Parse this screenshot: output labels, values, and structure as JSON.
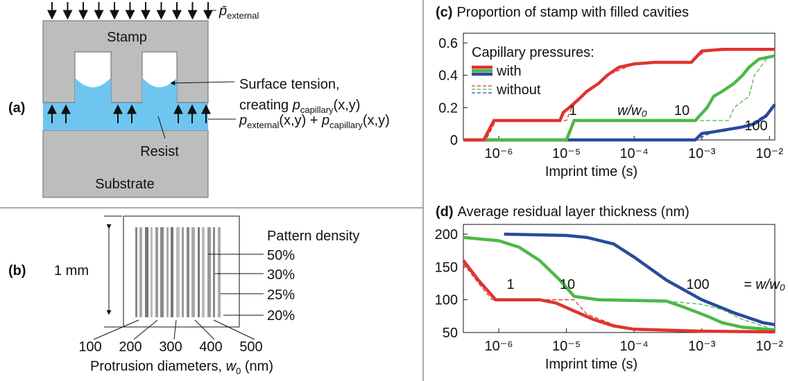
{
  "panel_a": {
    "label": "(a)",
    "stamp": "Stamp",
    "resist": "Resist",
    "substrate": "Substrate",
    "applied": {
      "symbol": "p̄",
      "sub": "external"
    },
    "tension": {
      "line1": "Surface tension,",
      "line2": "creating ",
      "symbol": "p",
      "sub": "capillary",
      "args": "(x,y)"
    },
    "local": [
      "p",
      "external",
      "(x,y) + ",
      "p",
      "capillary",
      "(x,y)"
    ]
  },
  "panel_b": {
    "label": "(b)",
    "height": "1 mm",
    "density_title": "Pattern density",
    "densities": [
      "50%",
      "30%",
      "25%",
      "20%"
    ],
    "diameters": [
      100,
      200,
      300,
      400,
      500
    ],
    "caption": [
      "Protrusion diameters, ",
      "w",
      "0",
      " (nm)"
    ]
  },
  "chart_data": [
    {
      "type": "line",
      "panel_label": "(c)",
      "title": "Proportion of stamp with filled cavities",
      "xlabel": "Imprint time (s)",
      "xscale": "log",
      "xlim": [
        3e-07,
        0.012
      ],
      "xticks": [
        {
          "value": 1e-06,
          "label": "10⁻⁶"
        },
        {
          "value": 1e-05,
          "label": "10⁻⁵"
        },
        {
          "value": 0.0001,
          "label": "10⁻⁴"
        },
        {
          "value": 0.001,
          "label": "10⁻³"
        },
        {
          "value": 0.01,
          "label": "10⁻²"
        }
      ],
      "ylim": [
        0,
        0.6
      ],
      "yticks": [
        0,
        0.2,
        0.4,
        0.6
      ],
      "legend": {
        "title": "Capillary pressures:",
        "entries": [
          {
            "label": "with",
            "dashed": false
          },
          {
            "label": "without",
            "dashed": true
          }
        ]
      },
      "annotations": [
        "w/w₀"
      ],
      "series": [
        {
          "name": "100",
          "color": "#2a4a9c",
          "x": [
            3e-07,
            0.0008,
            0.001,
            0.0015,
            0.004,
            0.006,
            0.009,
            0.012
          ],
          "values": [
            0,
            0,
            0.04,
            0.05,
            0.08,
            0.1,
            0.15,
            0.22
          ]
        },
        {
          "color": "#2a4a9c",
          "dashed": true,
          "x": [
            3e-07,
            0.0008,
            0.0015,
            0.005,
            0.009,
            0.012
          ],
          "values": [
            0,
            0,
            0.05,
            0.09,
            0.16,
            0.21
          ]
        },
        {
          "name": "10",
          "color": "#4cb848",
          "x": [
            3e-07,
            1e-05,
            1.3e-05,
            0.0008,
            0.0012,
            0.0015,
            0.002,
            0.003,
            0.004,
            0.005,
            0.007,
            0.012
          ],
          "values": [
            0,
            0,
            0.12,
            0.12,
            0.2,
            0.27,
            0.3,
            0.35,
            0.4,
            0.45,
            0.5,
            0.52
          ]
        },
        {
          "color": "#4cb848",
          "dashed": true,
          "x": [
            3e-07,
            1e-05,
            1.3e-05,
            0.0025,
            0.003,
            0.005,
            0.006,
            0.009,
            0.012
          ],
          "values": [
            0,
            0,
            0.12,
            0.12,
            0.2,
            0.27,
            0.4,
            0.5,
            0.53
          ]
        },
        {
          "name": "1",
          "color": "#e0332e",
          "x": [
            3e-07,
            6e-07,
            8.5e-07,
            8e-06,
            9e-06,
            1.1e-05,
            1.5e-05,
            2e-05,
            3e-05,
            4e-05,
            6e-05,
            0.0001,
            0.0002,
            0.0007,
            0.001,
            0.002,
            0.012
          ],
          "values": [
            0,
            0,
            0.12,
            0.12,
            0.17,
            0.2,
            0.25,
            0.3,
            0.35,
            0.4,
            0.45,
            0.47,
            0.48,
            0.48,
            0.55,
            0.56,
            0.56
          ]
        },
        {
          "color": "#e0332e",
          "dashed": true,
          "x": [
            3e-07,
            6.5e-07,
            9e-07,
            1e-05,
            1.2e-05,
            2e-05,
            4e-05,
            0.0001,
            0.0007,
            0.0012,
            0.012
          ],
          "values": [
            0,
            0,
            0.12,
            0.12,
            0.2,
            0.3,
            0.4,
            0.47,
            0.48,
            0.56,
            0.56
          ]
        }
      ]
    },
    {
      "type": "line",
      "panel_label": "(d)",
      "title": "Average residual layer thickness (nm)",
      "xlabel": "Imprint time (s)",
      "xscale": "log",
      "xlim": [
        3e-07,
        0.012
      ],
      "xticks": [
        {
          "value": 1e-06,
          "label": "10⁻⁶"
        },
        {
          "value": 1e-05,
          "label": "10⁻⁵"
        },
        {
          "value": 0.0001,
          "label": "10⁻⁴"
        },
        {
          "value": 0.001,
          "label": "10⁻³"
        },
        {
          "value": 0.01,
          "label": "10⁻²"
        }
      ],
      "ylim": [
        50,
        200
      ],
      "yticks": [
        50,
        100,
        150,
        200
      ],
      "annotations": [
        "= w/w₀"
      ],
      "series": [
        {
          "name": "100",
          "color": "#2a4a9c",
          "x": [
            1.2e-06,
            1e-05,
            2e-05,
            5e-05,
            0.0001,
            0.0003,
            0.001,
            0.003,
            0.008,
            0.012
          ],
          "values": [
            200,
            198,
            195,
            185,
            165,
            130,
            100,
            80,
            65,
            62
          ]
        },
        {
          "name": "10",
          "color": "#4cb848",
          "x": [
            3e-07,
            1e-06,
            2e-06,
            4e-06,
            8e-06,
            1.3e-05,
            3e-05,
            0.0003,
            0.0005,
            0.0008,
            0.0012,
            0.002,
            0.004,
            0.012
          ],
          "values": [
            195,
            190,
            180,
            160,
            130,
            105,
            100,
            98,
            90,
            82,
            75,
            65,
            58,
            54
          ]
        },
        {
          "color": "#4cb848",
          "dashed": true,
          "x": [
            3e-07,
            1e-06,
            2e-06,
            4e-06,
            8e-06,
            1.3e-05,
            3e-05,
            0.0003,
            0.001,
            0.002,
            0.004,
            0.01
          ],
          "values": [
            195,
            190,
            180,
            160,
            130,
            105,
            100,
            98,
            93,
            85,
            70,
            57
          ]
        },
        {
          "name": "1",
          "color": "#e0332e",
          "x": [
            3e-07,
            5e-07,
            9e-07,
            4e-06,
            7e-06,
            1.5e-05,
            2.5e-05,
            5e-05,
            0.0001,
            0.001,
            0.012
          ],
          "values": [
            160,
            130,
            100,
            100,
            95,
            80,
            70,
            60,
            55,
            52,
            51
          ]
        },
        {
          "color": "#e0332e",
          "dashed": true,
          "x": [
            3e-07,
            6e-07,
            8e-07,
            1.3e-05,
            2e-05,
            5e-05,
            0.0001,
            0.001,
            0.012
          ],
          "values": [
            155,
            115,
            100,
            100,
            78,
            62,
            56,
            52,
            51
          ]
        }
      ]
    }
  ]
}
